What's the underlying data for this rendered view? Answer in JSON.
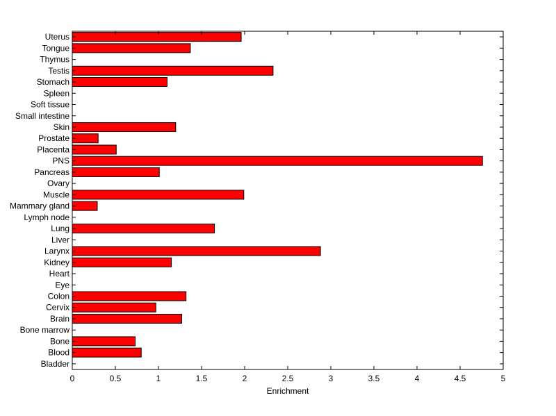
{
  "chart_data": {
    "type": "bar",
    "orientation": "horizontal",
    "categories": [
      "Uterus",
      "Tongue",
      "Thymus",
      "Testis",
      "Stomach",
      "Spleen",
      "Soft tissue",
      "Small intestine",
      "Skin",
      "Prostate",
      "Placenta",
      "PNS",
      "Pancreas",
      "Ovary",
      "Muscle",
      "Mammary gland",
      "Lymph node",
      "Lung",
      "Liver",
      "Larynx",
      "Kidney",
      "Heart",
      "Eye",
      "Colon",
      "Cervix",
      "Brain",
      "Bone marrow",
      "Bone",
      "Blood",
      "Bladder"
    ],
    "values": [
      1.96,
      1.37,
      0,
      2.33,
      1.1,
      0,
      0,
      0,
      1.2,
      0.3,
      0.51,
      4.76,
      1.01,
      0,
      1.99,
      0.29,
      0,
      1.65,
      0,
      2.88,
      1.15,
      0,
      0,
      1.32,
      0.97,
      1.27,
      0,
      0.73,
      0.8,
      0
    ],
    "title": "",
    "xlabel": "Enrichment",
    "ylabel": "",
    "xlim": [
      0,
      5
    ],
    "xticks": [
      0,
      0.5,
      1,
      1.5,
      2,
      2.5,
      3,
      3.5,
      4,
      4.5,
      5
    ],
    "xtick_labels": [
      "0",
      "0.5",
      "1",
      "1.5",
      "2",
      "2.5",
      "3",
      "3.5",
      "4",
      "4.5",
      "5"
    ],
    "bar_color": "#ff0000",
    "edge_color": "#000000",
    "grid": false,
    "legend": "none"
  }
}
